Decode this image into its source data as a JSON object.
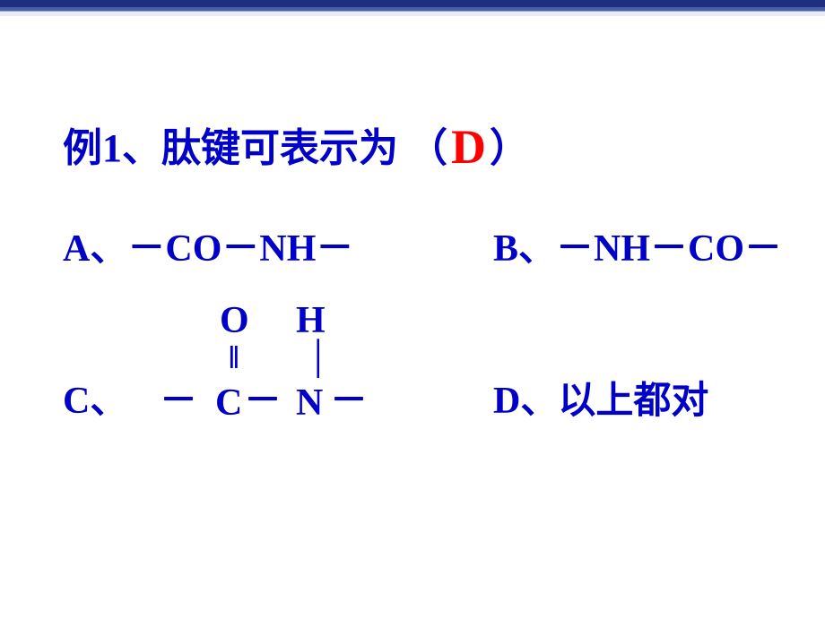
{
  "question": {
    "prefix": "例1、肽键可表示为 （",
    "answer": "D",
    "suffix": "）"
  },
  "options": {
    "a": {
      "label": "A、",
      "formula_parts": [
        "－",
        "CO",
        "－",
        "NH",
        "－"
      ]
    },
    "b": {
      "label": "B、",
      "formula_parts": [
        "－",
        "NH",
        "－",
        "CO",
        "－"
      ]
    },
    "c": {
      "label": "C、",
      "top_O": "O",
      "top_H": "H",
      "double_bond": "‖",
      "single_bond": "│",
      "bottom_C": "C",
      "bottom_N": "N",
      "dash": "－"
    },
    "d": {
      "label": "D、",
      "text": "以上都对"
    }
  },
  "colors": {
    "text": "#0000c8",
    "answer": "#ff0000",
    "background": "#ffffff",
    "border_dark": "#1f2f7f"
  },
  "fonts": {
    "question_size": 44,
    "answer_size": 54,
    "option_size": 42
  }
}
